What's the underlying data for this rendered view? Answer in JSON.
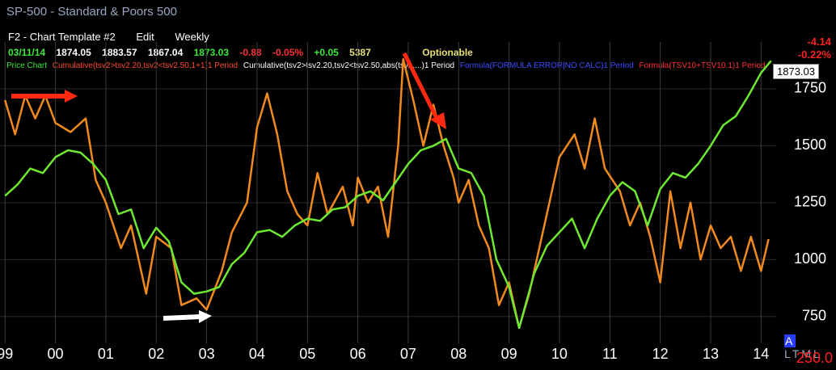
{
  "header": {
    "title": "SP-500 - Standard & Poors 500",
    "template": "F2 - Chart Template #2",
    "edit": "Edit",
    "period": "Weekly"
  },
  "quote": {
    "date": "03/11/14",
    "open": "1874.05",
    "high": "1883.57",
    "low": "1867.04",
    "close": "1873.03",
    "change": "-0.88",
    "change_pct": "-0.05%",
    "change2": "+0.05",
    "volume": "5387",
    "note": "Optionable"
  },
  "change_right": {
    "net": "-4.14",
    "pct": "-0.22%"
  },
  "price_tag": "1873.03",
  "legend": [
    "Price Chart",
    "Cumulative(tsv2>tsv2.20,tsv2<tsv2.50,1+1)1 Period",
    "Cumulative(tsv2>tsv2.20,tsv2<tsv2.50,abs(tsv1....)1 Period",
    "Formula(FORMULA ERROR|NO CALC)1 Period",
    "Formula(TSV10+TSV10.1)1 Period"
  ],
  "footer": {
    "a": "A",
    "rest": "LTML",
    "scale": "250.0"
  },
  "chart_data": {
    "type": "line",
    "xlim": [
      1998.9,
      2014.3
    ],
    "ylim": [
      650,
      1920
    ],
    "yticks": [
      750,
      1000,
      1250,
      1500,
      1750
    ],
    "xticks": [
      {
        "value": 1999,
        "label": "99"
      },
      {
        "value": 2000,
        "label": "00"
      },
      {
        "value": 2001,
        "label": "01"
      },
      {
        "value": 2002,
        "label": "02"
      },
      {
        "value": 2003,
        "label": "03"
      },
      {
        "value": 2004,
        "label": "04"
      },
      {
        "value": 2005,
        "label": "05"
      },
      {
        "value": 2006,
        "label": "06"
      },
      {
        "value": 2007,
        "label": "07"
      },
      {
        "value": 2008,
        "label": "08"
      },
      {
        "value": 2009,
        "label": "09"
      },
      {
        "value": 2010,
        "label": "10"
      },
      {
        "value": 2011,
        "label": "11"
      },
      {
        "value": 2012,
        "label": "12"
      },
      {
        "value": 2013,
        "label": "13"
      },
      {
        "value": 2014,
        "label": "14"
      }
    ],
    "grid": true,
    "series": [
      {
        "color": "#f08a1c",
        "x": [
          1999.0,
          1999.2,
          1999.4,
          1999.6,
          1999.8,
          2000.0,
          2000.3,
          2000.6,
          2000.8,
          2001.0,
          2001.3,
          2001.5,
          2001.8,
          2002.0,
          2002.3,
          2002.5,
          2002.8,
          2003.0,
          2003.3,
          2003.5,
          2003.8,
          2004.0,
          2004.2,
          2004.4,
          2004.6,
          2004.8,
          2005.0,
          2005.2,
          2005.4,
          2005.7,
          2005.9,
          2006.0,
          2006.2,
          2006.4,
          2006.6,
          2006.8,
          2006.9,
          2007.1,
          2007.3,
          2007.5,
          2007.7,
          2007.9,
          2008.0,
          2008.2,
          2008.4,
          2008.6,
          2008.8,
          2009.0,
          2009.2,
          2009.4,
          2009.6,
          2009.8,
          2010.0,
          2010.3,
          2010.5,
          2010.7,
          2010.9,
          2011.2,
          2011.4,
          2011.6,
          2011.8,
          2012.0,
          2012.2,
          2012.4,
          2012.6,
          2012.8,
          2013.0,
          2013.2,
          2013.4,
          2013.6,
          2013.8,
          2014.0,
          2014.15
        ],
        "values": [
          1700,
          1550,
          1720,
          1620,
          1720,
          1600,
          1560,
          1620,
          1350,
          1250,
          1050,
          1150,
          850,
          1100,
          1050,
          800,
          830,
          780,
          950,
          1120,
          1250,
          1580,
          1730,
          1550,
          1300,
          1200,
          1150,
          1380,
          1200,
          1320,
          1150,
          1360,
          1250,
          1320,
          1100,
          1500,
          1880,
          1700,
          1500,
          1680,
          1500,
          1360,
          1250,
          1350,
          1150,
          1050,
          800,
          900,
          700,
          850,
          1050,
          1250,
          1450,
          1550,
          1400,
          1620,
          1400,
          1300,
          1150,
          1250,
          1100,
          900,
          1300,
          1050,
          1250,
          1000,
          1150,
          1050,
          1100,
          950,
          1100,
          950,
          1090
        ]
      },
      {
        "color": "#6ee830",
        "x": [
          1999.0,
          1999.25,
          1999.5,
          1999.75,
          2000.0,
          2000.25,
          2000.5,
          2000.75,
          2001.0,
          2001.25,
          2001.5,
          2001.75,
          2002.0,
          2002.25,
          2002.5,
          2002.75,
          2003.0,
          2003.25,
          2003.5,
          2003.75,
          2004.0,
          2004.25,
          2004.5,
          2004.75,
          2005.0,
          2005.25,
          2005.5,
          2005.75,
          2006.0,
          2006.25,
          2006.5,
          2006.75,
          2007.0,
          2007.25,
          2007.5,
          2007.75,
          2008.0,
          2008.25,
          2008.5,
          2008.75,
          2009.0,
          2009.2,
          2009.5,
          2009.75,
          2010.0,
          2010.25,
          2010.5,
          2010.75,
          2011.0,
          2011.25,
          2011.5,
          2011.75,
          2012.0,
          2012.25,
          2012.5,
          2012.75,
          2013.0,
          2013.25,
          2013.5,
          2013.75,
          2014.0,
          2014.2
        ],
        "values": [
          1280,
          1330,
          1400,
          1380,
          1450,
          1480,
          1470,
          1420,
          1350,
          1200,
          1220,
          1050,
          1140,
          1080,
          900,
          850,
          860,
          880,
          980,
          1030,
          1120,
          1130,
          1100,
          1150,
          1180,
          1170,
          1220,
          1230,
          1280,
          1300,
          1260,
          1340,
          1420,
          1480,
          1500,
          1530,
          1400,
          1380,
          1280,
          1000,
          880,
          700,
          940,
          1060,
          1120,
          1180,
          1050,
          1180,
          1280,
          1340,
          1300,
          1150,
          1310,
          1380,
          1360,
          1420,
          1500,
          1590,
          1630,
          1720,
          1820,
          1873
        ]
      }
    ]
  }
}
